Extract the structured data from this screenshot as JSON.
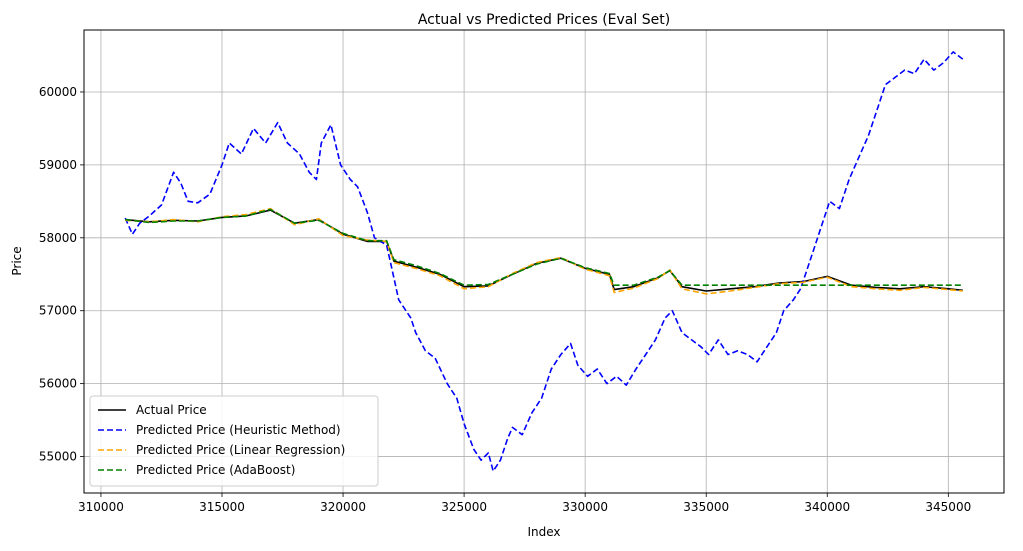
{
  "chart_data": {
    "type": "line",
    "title": "Actual vs Predicted Prices (Eval Set)",
    "xlabel": "Index",
    "ylabel": "Price",
    "xlim": [
      309300,
      347300
    ],
    "ylim": [
      54500,
      60850
    ],
    "xticks": [
      310000,
      315000,
      320000,
      325000,
      330000,
      335000,
      340000,
      345000
    ],
    "yticks": [
      55000,
      56000,
      57000,
      58000,
      59000,
      60000
    ],
    "grid": true,
    "legend_position": "lower-left",
    "series": [
      {
        "name": "Actual Price",
        "color": "#000000",
        "dash": "solid",
        "points": [
          [
            311000,
            58250
          ],
          [
            312000,
            58220
          ],
          [
            313000,
            58240
          ],
          [
            314000,
            58230
          ],
          [
            315000,
            58280
          ],
          [
            316000,
            58300
          ],
          [
            317000,
            58380
          ],
          [
            318000,
            58200
          ],
          [
            319000,
            58250
          ],
          [
            320000,
            58050
          ],
          [
            321000,
            57950
          ],
          [
            321800,
            57950
          ],
          [
            322100,
            57680
          ],
          [
            323000,
            57600
          ],
          [
            324000,
            57500
          ],
          [
            325000,
            57330
          ],
          [
            326000,
            57340
          ],
          [
            327000,
            57500
          ],
          [
            328000,
            57650
          ],
          [
            329000,
            57720
          ],
          [
            330000,
            57580
          ],
          [
            331000,
            57500
          ],
          [
            331200,
            57290
          ],
          [
            332000,
            57330
          ],
          [
            333000,
            57450
          ],
          [
            333500,
            57550
          ],
          [
            334000,
            57330
          ],
          [
            335000,
            57270
          ],
          [
            336000,
            57300
          ],
          [
            337000,
            57330
          ],
          [
            338000,
            57380
          ],
          [
            339000,
            57400
          ],
          [
            340000,
            57470
          ],
          [
            341000,
            57350
          ],
          [
            342000,
            57320
          ],
          [
            343000,
            57300
          ],
          [
            344000,
            57330
          ],
          [
            345000,
            57300
          ],
          [
            345600,
            57280
          ]
        ]
      },
      {
        "name": "Predicted Price (Heuristic Method)",
        "color": "#0000ff",
        "dash": "dashed",
        "points": [
          [
            311000,
            58270
          ],
          [
            311300,
            58050
          ],
          [
            311600,
            58200
          ],
          [
            312000,
            58300
          ],
          [
            312500,
            58450
          ],
          [
            313000,
            58900
          ],
          [
            313300,
            58750
          ],
          [
            313600,
            58500
          ],
          [
            314000,
            58480
          ],
          [
            314500,
            58600
          ],
          [
            315000,
            59000
          ],
          [
            315300,
            59300
          ],
          [
            315800,
            59150
          ],
          [
            316300,
            59500
          ],
          [
            316800,
            59300
          ],
          [
            317300,
            59580
          ],
          [
            317700,
            59300
          ],
          [
            318200,
            59150
          ],
          [
            318600,
            58900
          ],
          [
            318900,
            58800
          ],
          [
            319100,
            59300
          ],
          [
            319500,
            59550
          ],
          [
            319900,
            59000
          ],
          [
            320300,
            58800
          ],
          [
            320600,
            58700
          ],
          [
            321000,
            58350
          ],
          [
            321300,
            58000
          ],
          [
            321800,
            57900
          ],
          [
            322000,
            57600
          ],
          [
            322300,
            57150
          ],
          [
            322800,
            56900
          ],
          [
            323000,
            56700
          ],
          [
            323400,
            56450
          ],
          [
            323800,
            56350
          ],
          [
            324300,
            56000
          ],
          [
            324700,
            55800
          ],
          [
            325000,
            55450
          ],
          [
            325400,
            55100
          ],
          [
            325700,
            54950
          ],
          [
            326000,
            55050
          ],
          [
            326200,
            54800
          ],
          [
            326500,
            54950
          ],
          [
            326800,
            55250
          ],
          [
            327000,
            55400
          ],
          [
            327400,
            55300
          ],
          [
            327800,
            55600
          ],
          [
            328200,
            55800
          ],
          [
            328600,
            56200
          ],
          [
            329000,
            56400
          ],
          [
            329400,
            56550
          ],
          [
            329700,
            56250
          ],
          [
            330100,
            56100
          ],
          [
            330500,
            56200
          ],
          [
            330900,
            56000
          ],
          [
            331300,
            56100
          ],
          [
            331700,
            55980
          ],
          [
            332100,
            56200
          ],
          [
            332500,
            56400
          ],
          [
            332900,
            56600
          ],
          [
            333300,
            56900
          ],
          [
            333600,
            57000
          ],
          [
            334000,
            56700
          ],
          [
            334400,
            56600
          ],
          [
            334800,
            56500
          ],
          [
            335100,
            56400
          ],
          [
            335500,
            56600
          ],
          [
            335900,
            56400
          ],
          [
            336300,
            56450
          ],
          [
            336700,
            56400
          ],
          [
            337100,
            56300
          ],
          [
            337500,
            56500
          ],
          [
            337900,
            56700
          ],
          [
            338200,
            57000
          ],
          [
            338600,
            57150
          ],
          [
            338900,
            57300
          ],
          [
            339200,
            57600
          ],
          [
            339500,
            57900
          ],
          [
            339800,
            58200
          ],
          [
            340100,
            58500
          ],
          [
            340500,
            58400
          ],
          [
            340900,
            58800
          ],
          [
            341300,
            59100
          ],
          [
            341700,
            59400
          ],
          [
            342000,
            59700
          ],
          [
            342400,
            60100
          ],
          [
            342800,
            60200
          ],
          [
            343200,
            60300
          ],
          [
            343600,
            60250
          ],
          [
            344000,
            60450
          ],
          [
            344400,
            60300
          ],
          [
            344800,
            60400
          ],
          [
            345200,
            60550
          ],
          [
            345600,
            60450
          ]
        ]
      },
      {
        "name": "Predicted Price (Linear Regression)",
        "color": "#ffa500",
        "dash": "dashed",
        "points": [
          [
            311000,
            58240
          ],
          [
            312000,
            58220
          ],
          [
            313000,
            58250
          ],
          [
            314000,
            58220
          ],
          [
            315000,
            58290
          ],
          [
            316000,
            58320
          ],
          [
            317000,
            58400
          ],
          [
            318000,
            58180
          ],
          [
            319000,
            58260
          ],
          [
            320000,
            58030
          ],
          [
            321000,
            57970
          ],
          [
            321800,
            57950
          ],
          [
            322100,
            57660
          ],
          [
            323000,
            57580
          ],
          [
            324000,
            57480
          ],
          [
            325000,
            57300
          ],
          [
            326000,
            57330
          ],
          [
            327000,
            57510
          ],
          [
            328000,
            57660
          ],
          [
            329000,
            57730
          ],
          [
            330000,
            57570
          ],
          [
            331000,
            57480
          ],
          [
            331200,
            57250
          ],
          [
            332000,
            57310
          ],
          [
            333000,
            57440
          ],
          [
            333500,
            57560
          ],
          [
            334000,
            57300
          ],
          [
            335000,
            57230
          ],
          [
            336000,
            57270
          ],
          [
            337000,
            57320
          ],
          [
            338000,
            57370
          ],
          [
            339000,
            57390
          ],
          [
            340000,
            57460
          ],
          [
            341000,
            57330
          ],
          [
            342000,
            57300
          ],
          [
            343000,
            57280
          ],
          [
            344000,
            57320
          ],
          [
            345000,
            57290
          ],
          [
            345600,
            57270
          ]
        ]
      },
      {
        "name": "Predicted Price (AdaBoost)",
        "color": "#008000",
        "dash": "dashed",
        "points": [
          [
            311000,
            58250
          ],
          [
            312000,
            58210
          ],
          [
            313000,
            58230
          ],
          [
            314000,
            58230
          ],
          [
            315000,
            58280
          ],
          [
            316000,
            58300
          ],
          [
            317000,
            58390
          ],
          [
            318000,
            58200
          ],
          [
            319000,
            58240
          ],
          [
            320000,
            58060
          ],
          [
            321000,
            57960
          ],
          [
            321800,
            57960
          ],
          [
            322100,
            57700
          ],
          [
            323000,
            57620
          ],
          [
            324000,
            57510
          ],
          [
            325000,
            57350
          ],
          [
            326000,
            57360
          ],
          [
            327000,
            57500
          ],
          [
            328000,
            57640
          ],
          [
            329000,
            57720
          ],
          [
            330000,
            57590
          ],
          [
            331000,
            57510
          ],
          [
            331200,
            57350
          ],
          [
            332000,
            57350
          ],
          [
            333000,
            57460
          ],
          [
            333500,
            57550
          ],
          [
            334000,
            57350
          ],
          [
            345600,
            57350
          ]
        ]
      }
    ]
  }
}
